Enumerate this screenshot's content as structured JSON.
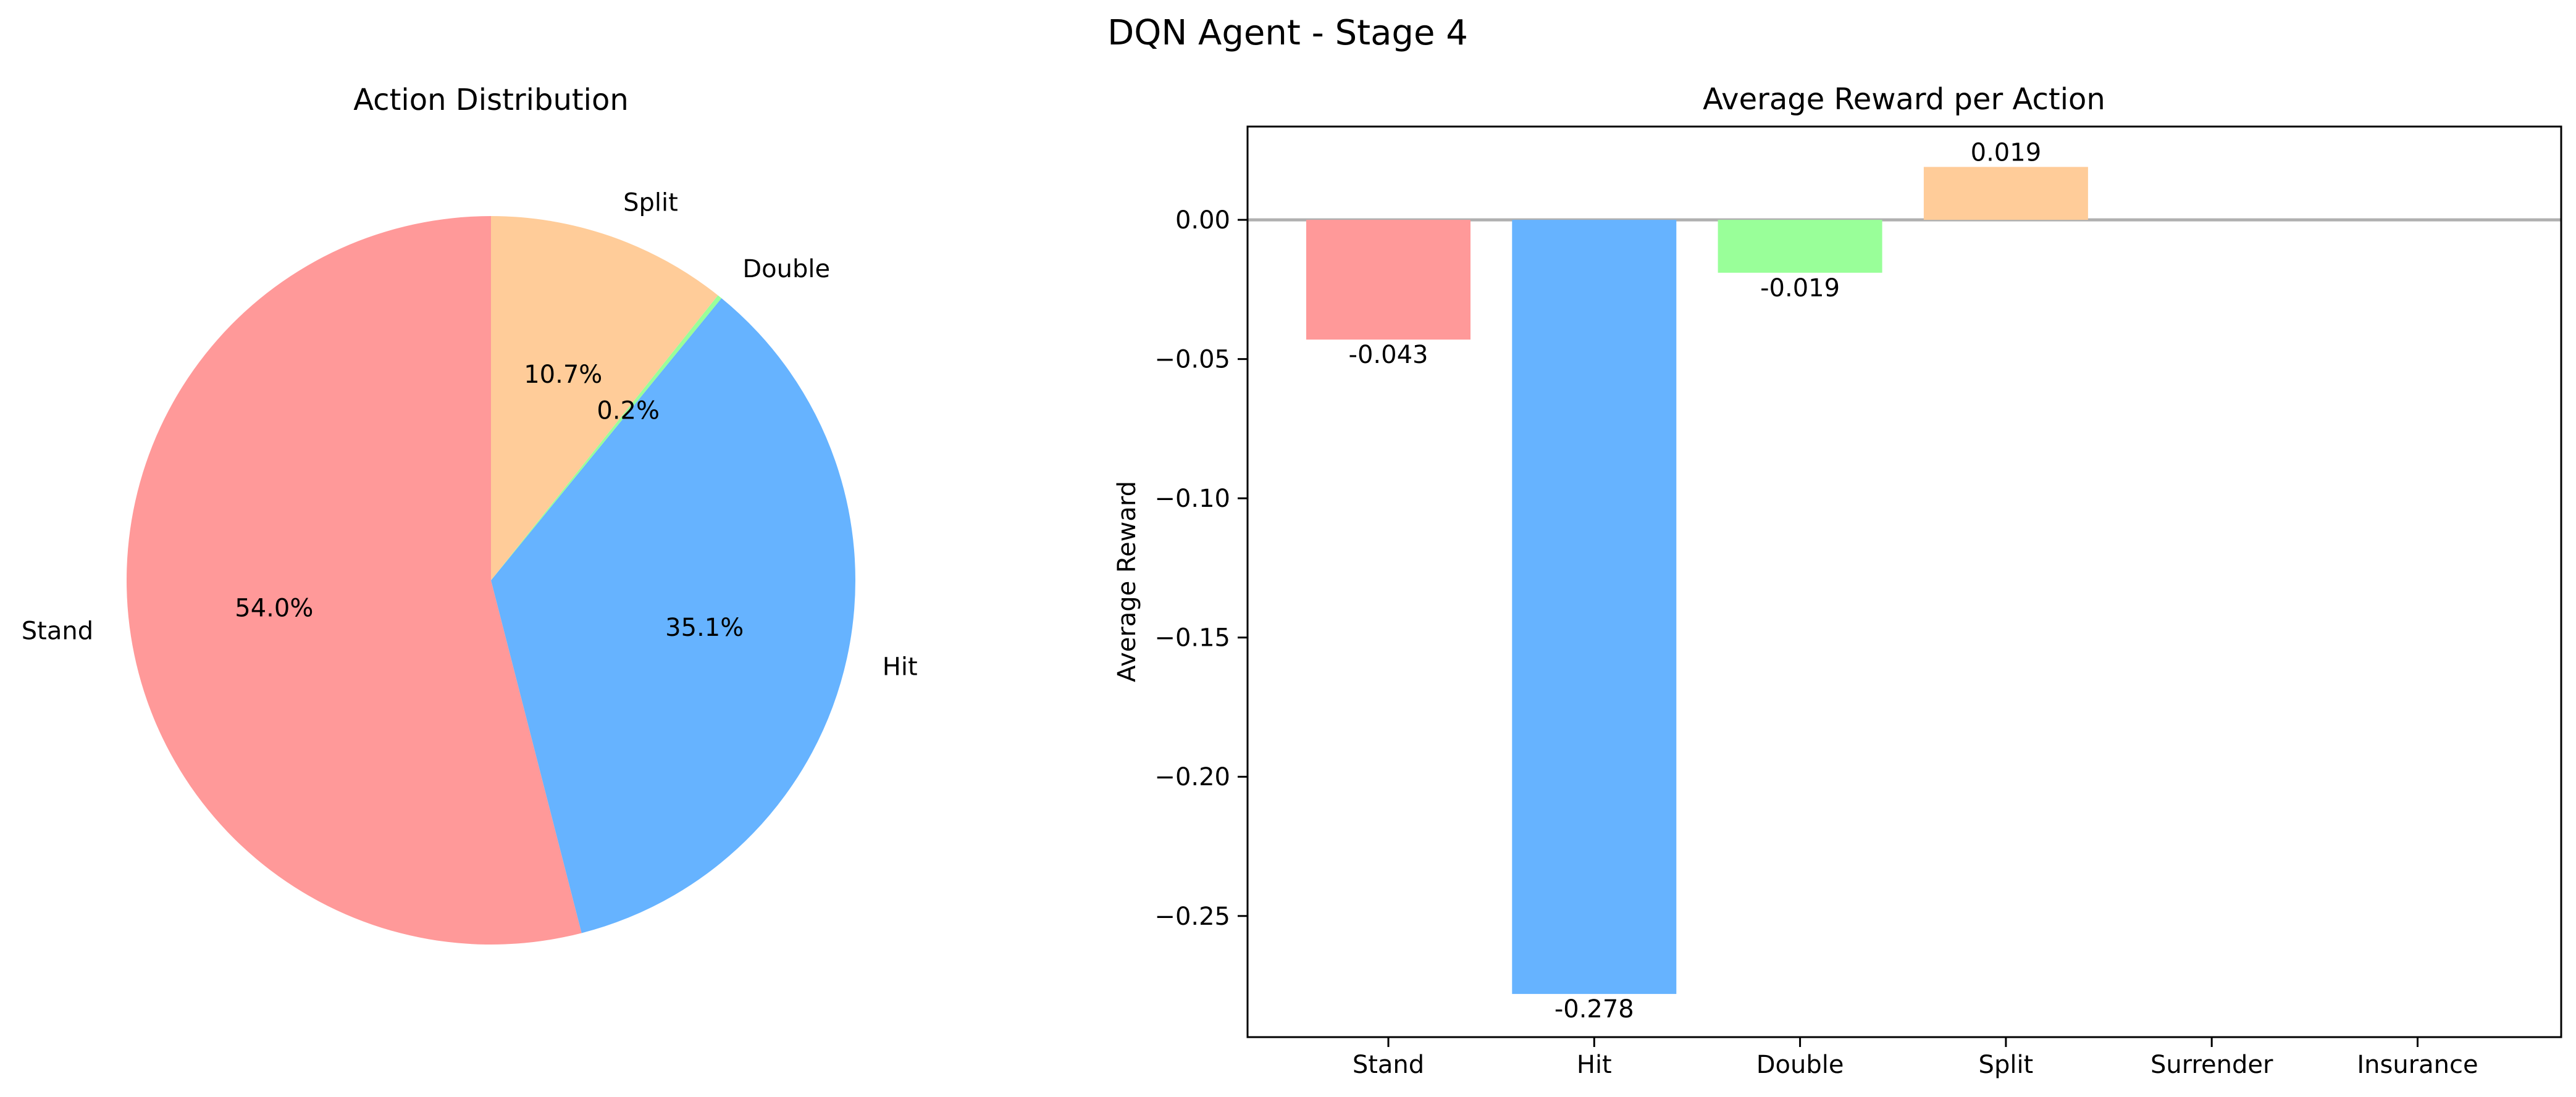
{
  "figure_title": "DQN Agent - Stage 4",
  "chart_data": [
    {
      "type": "pie",
      "title": "Action Distribution",
      "labels": [
        "Stand",
        "Hit",
        "Double",
        "Split"
      ],
      "values": [
        54.0,
        35.1,
        0.2,
        10.7
      ],
      "pct_labels": [
        "54.0%",
        "35.1%",
        "0.2%",
        "10.7%"
      ],
      "colors": [
        "#ff9999",
        "#66b3ff",
        "#99ff99",
        "#ffcc99"
      ],
      "start_angle_deg": 90,
      "direction": "counterclockwise"
    },
    {
      "type": "bar",
      "title": "Average Reward per Action",
      "xlabel": "",
      "ylabel": "Average Reward",
      "categories": [
        "Stand",
        "Hit",
        "Double",
        "Split",
        "Surrender",
        "Insurance"
      ],
      "values": [
        -0.043,
        -0.278,
        -0.019,
        0.019,
        null,
        null
      ],
      "value_labels": [
        "-0.043",
        "-0.278",
        "-0.019",
        "0.019",
        "",
        ""
      ],
      "colors": [
        "#ff9999",
        "#66b3ff",
        "#99ff99",
        "#ffcc99"
      ],
      "ylim": [
        -0.2935,
        0.0335
      ],
      "yticks": [
        0.0,
        -0.05,
        -0.1,
        -0.15,
        -0.2,
        -0.25
      ],
      "ytick_labels": [
        "0.00",
        "−0.05",
        "−0.10",
        "−0.15",
        "−0.20",
        "−0.25"
      ],
      "zero_line": true,
      "grid": false
    }
  ]
}
